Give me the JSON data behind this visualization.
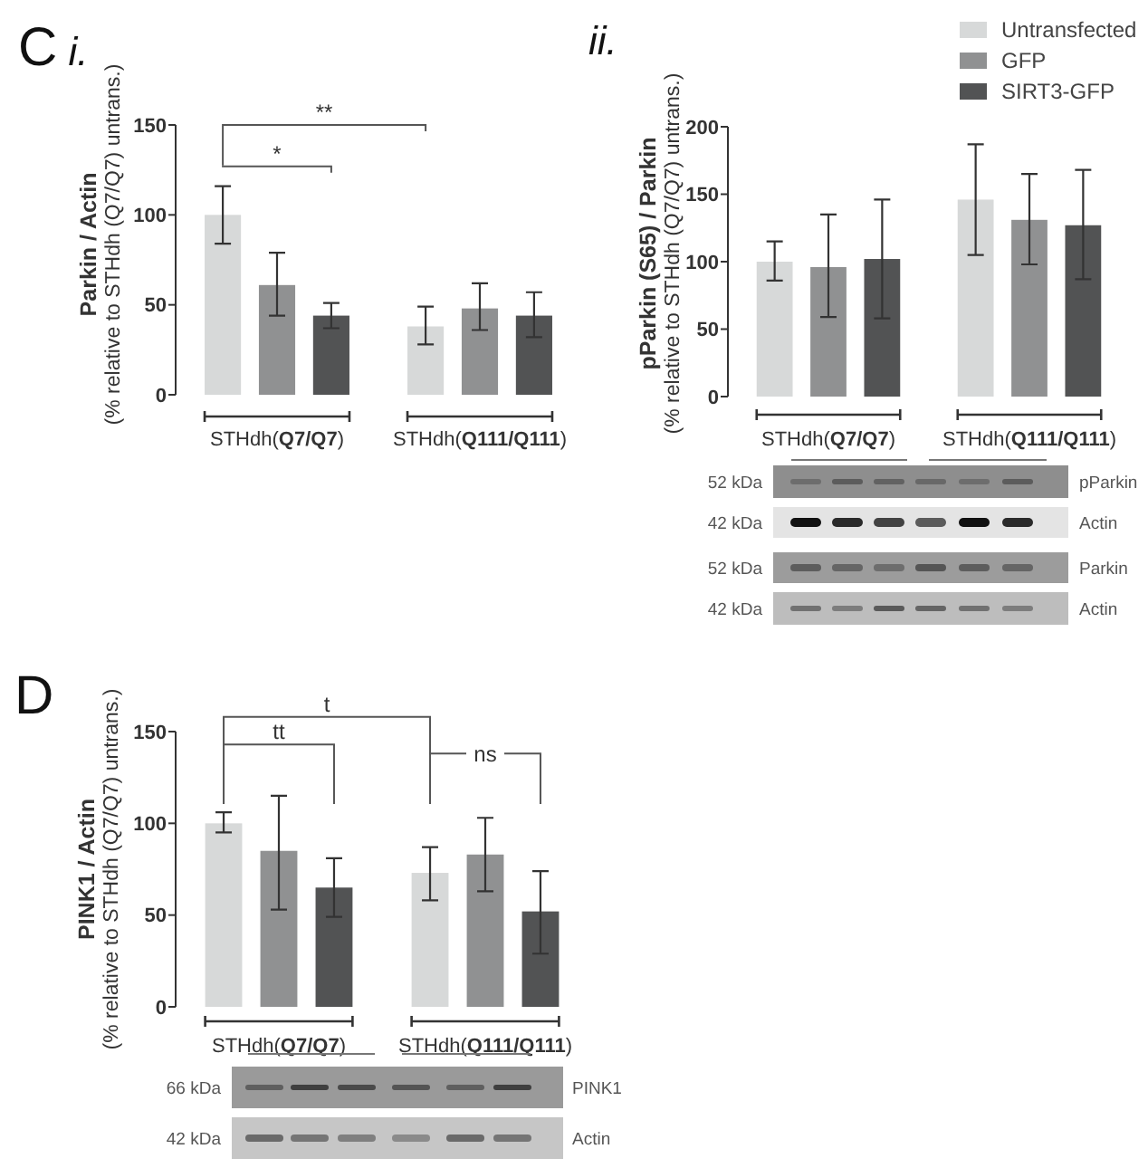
{
  "chart_data": [
    {
      "type": "bar",
      "title": "C i.",
      "ylabel": "Parkin / Actin\n(% relative to STHdh (Q7/Q7) untrans.)",
      "categories": [
        "STHdh(Q7/Q7)",
        "STHdh(Q111/Q111)"
      ],
      "series": [
        {
          "color": "#d7d9d9",
          "values": [
            100,
            38
          ],
          "errors": [
            [
              84,
              116
            ],
            [
              28,
              49
            ]
          ]
        },
        {
          "color": "#909192",
          "values": [
            61,
            48
          ],
          "errors": [
            [
              44,
              79
            ],
            [
              36,
              62
            ]
          ]
        },
        {
          "color": "#525354",
          "values": [
            44,
            44
          ],
          "errors": [
            [
              37,
              51
            ],
            [
              32,
              57
            ]
          ]
        }
      ],
      "ylim": [
        0,
        150
      ],
      "yticks": [
        0,
        50,
        100,
        150
      ],
      "annotations": [
        "**",
        "*"
      ]
    },
    {
      "type": "bar",
      "title": "ii.",
      "ylabel": "pParkin (S65) / Parkin\n(% relative to STHdh (Q7/Q7) untrans.)",
      "categories": [
        "STHdh(Q7/Q7)",
        "STHdh(Q111/Q111)"
      ],
      "series": [
        {
          "name": "Untransfected",
          "color": "#d7d9d9",
          "values": [
            100,
            146
          ],
          "errors": [
            [
              86,
              115
            ],
            [
              105,
              187
            ]
          ]
        },
        {
          "name": "GFP",
          "color": "#909192",
          "values": [
            96,
            131
          ],
          "errors": [
            [
              59,
              135
            ],
            [
              98,
              165
            ]
          ]
        },
        {
          "name": "SIRT3-GFP",
          "color": "#525354",
          "values": [
            102,
            127
          ],
          "errors": [
            [
              58,
              146
            ],
            [
              87,
              168
            ]
          ]
        }
      ],
      "ylim": [
        0,
        200
      ],
      "yticks": [
        0,
        50,
        100,
        150,
        200
      ],
      "legend": "top right",
      "annotations": [
        "52 kDa",
        "pParkin",
        "42 kDa",
        "Actin",
        "52 kDa",
        "Parkin",
        "42 kDa",
        "Actin"
      ]
    },
    {
      "type": "bar",
      "title": "D",
      "ylabel": "PINK1 / Actin\n(% relative to STHdh (Q7/Q7) untrans.)",
      "categories": [
        "STHdh(Q7/Q7)",
        "STHdh(Q111/Q111)"
      ],
      "series": [
        {
          "color": "#d7d9d9",
          "values": [
            100,
            73
          ],
          "errors": [
            [
              95,
              106
            ],
            [
              58,
              87
            ]
          ]
        },
        {
          "color": "#909192",
          "values": [
            85,
            83
          ],
          "errors": [
            [
              53,
              115
            ],
            [
              63,
              103
            ]
          ]
        },
        {
          "color": "#525354",
          "values": [
            65,
            52
          ],
          "errors": [
            [
              49,
              81
            ],
            [
              29,
              74
            ]
          ]
        }
      ],
      "ylim": [
        0,
        150
      ],
      "yticks": [
        0,
        50,
        100,
        150
      ],
      "annotations": [
        "t",
        "tt",
        "ns",
        "66 kDa",
        "PINK1",
        "42 kDa",
        "Actin"
      ]
    }
  ]
}
